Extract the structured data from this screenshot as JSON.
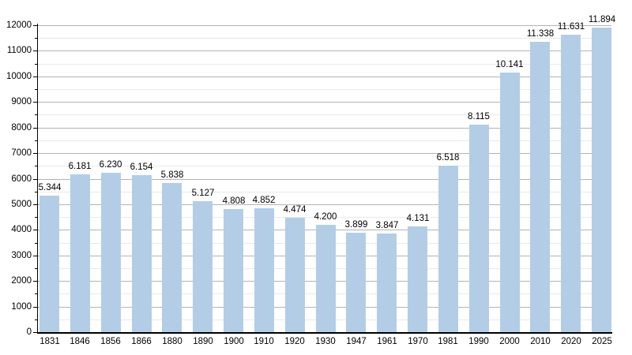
{
  "chart_data": {
    "type": "bar",
    "title": "",
    "xlabel": "",
    "ylabel": "",
    "categories": [
      "1831",
      "1846",
      "1856",
      "1866",
      "1880",
      "1890",
      "1900",
      "1910",
      "1920",
      "1930",
      "1947",
      "1961",
      "1970",
      "1981",
      "1990",
      "2000",
      "2010",
      "2020",
      "2025"
    ],
    "values": [
      5344,
      6181,
      6230,
      6154,
      5838,
      5127,
      4808,
      4852,
      4474,
      4200,
      3899,
      3847,
      4131,
      6518,
      8115,
      10141,
      11338,
      11631,
      11894
    ],
    "value_labels": [
      "5.344",
      "6.181",
      "6.230",
      "6.154",
      "5.838",
      "5.127",
      "4.808",
      "4.852",
      "4.474",
      "4.200",
      "3.899",
      "3.847",
      "4.131",
      "6.518",
      "8.115",
      "10.141",
      "11.338",
      "11.631",
      "11.894"
    ],
    "y_tick_labels": [
      "0",
      "1000",
      "2000",
      "3000",
      "4000",
      "5000",
      "6000",
      "7000",
      "8000",
      "9000",
      "10000",
      "11000",
      "12000"
    ],
    "ylim": [
      0,
      12000
    ],
    "ytick_step": 1000,
    "yminor_step": 500,
    "grid": true,
    "legend": "none",
    "colors": {
      "bar_fill": "#b3cde7",
      "grid_major": "#b3b3b3",
      "grid_minor": "#e9e9e9",
      "axis": "#000000",
      "text": "#000000",
      "background": "#ffffff"
    }
  }
}
